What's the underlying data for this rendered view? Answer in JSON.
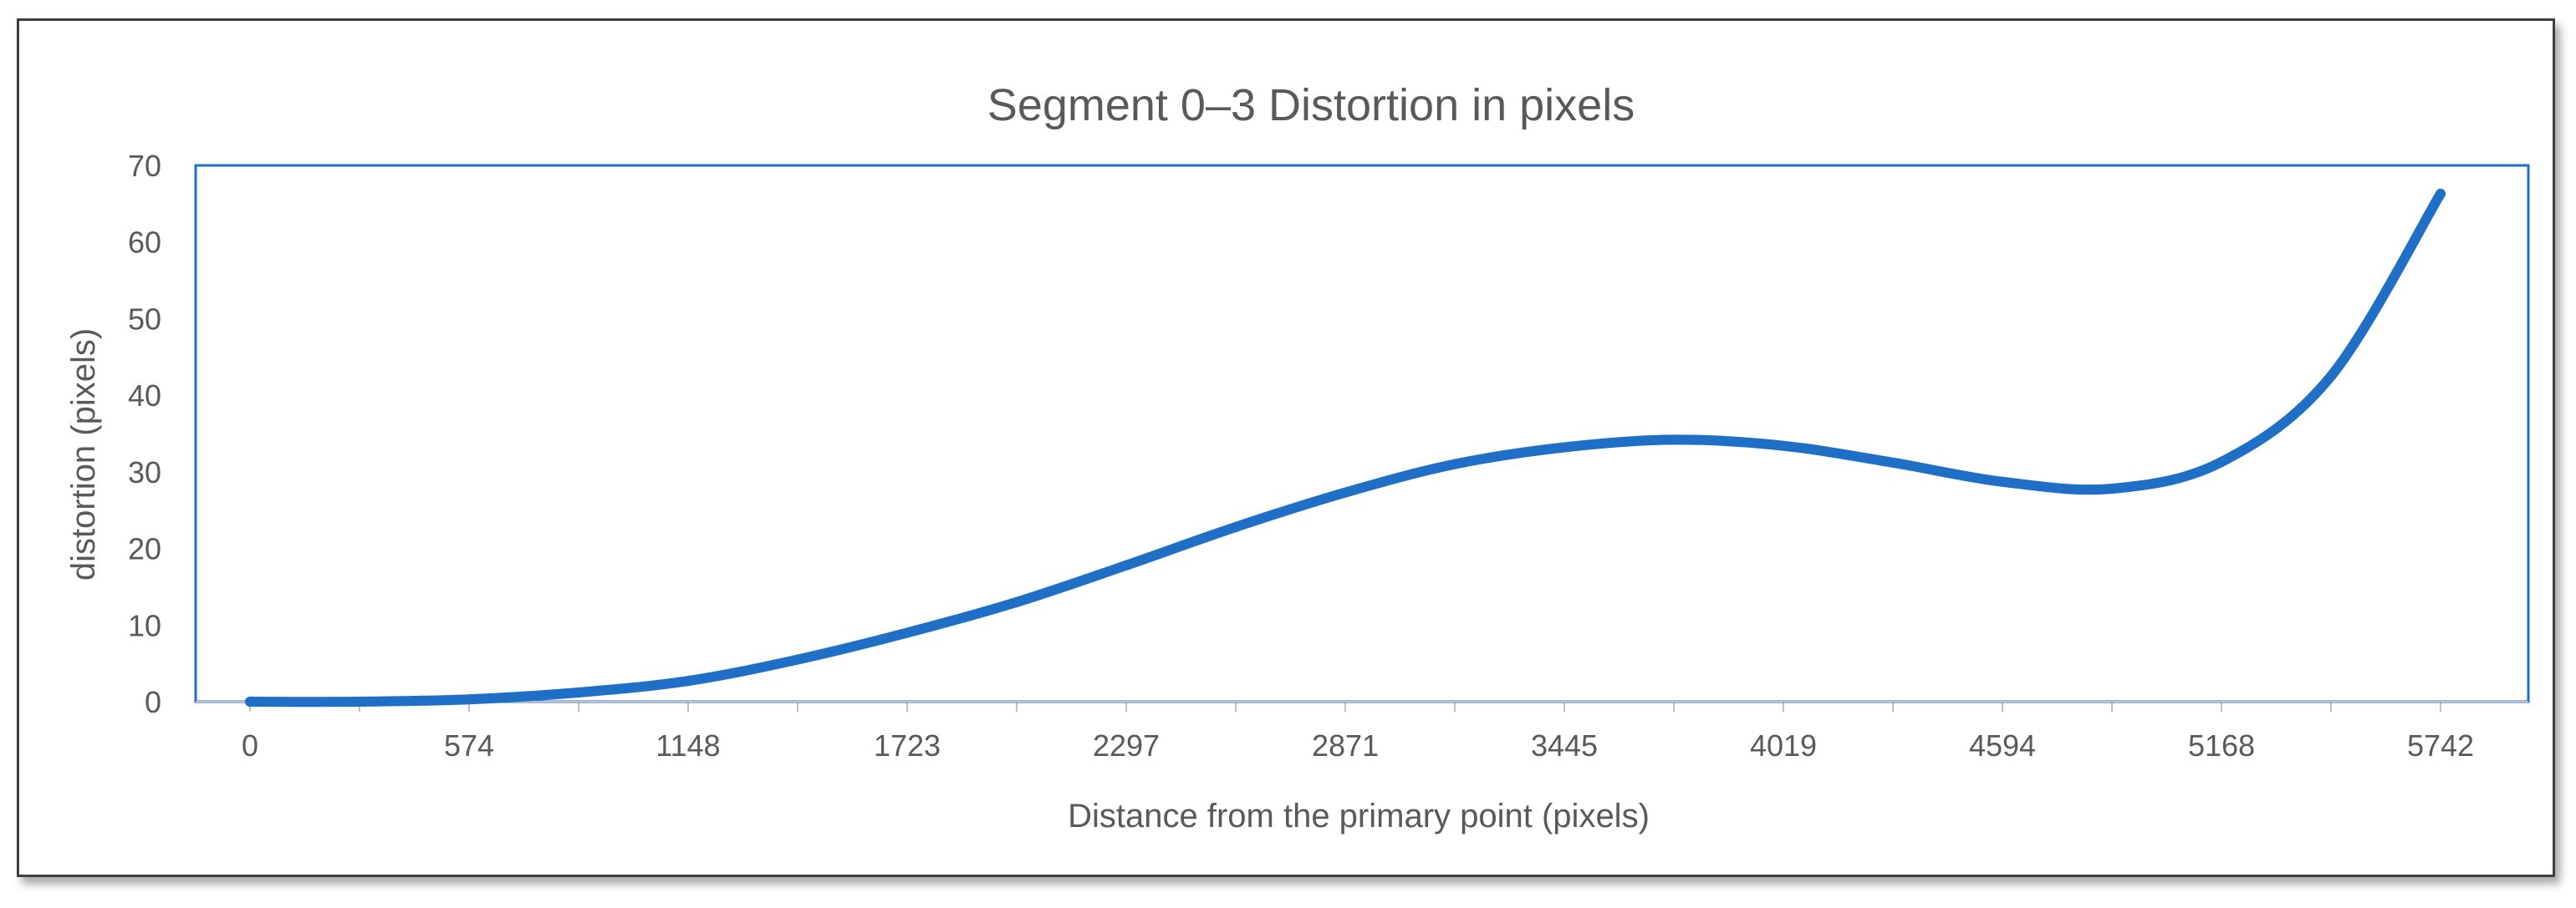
{
  "chart_data": {
    "type": "line",
    "title": "Segment 0–3 Distortion in pixels",
    "xlabel": "Distance from the primary point (pixels)",
    "ylabel": "distortion (pixels)",
    "x_tick_labels": [
      "0",
      "574",
      "1148",
      "1723",
      "2297",
      "2871",
      "3445",
      "4019",
      "4594",
      "5168",
      "5742"
    ],
    "y_tick_labels": [
      "0",
      "10",
      "20",
      "30",
      "40",
      "50",
      "60",
      "70"
    ],
    "ylim": [
      0,
      70
    ],
    "grid": false,
    "legend": "none",
    "series": [
      {
        "x": [
          0,
          287,
          574,
          861,
          1148,
          1436,
          1723,
          2010,
          2297,
          2584,
          2871,
          3158,
          3445,
          3732,
          4019,
          4307,
          4594,
          4881,
          5168,
          5455,
          5742
        ],
        "values": [
          0,
          0,
          0.3,
          1.2,
          2.7,
          5.5,
          9,
          13,
          17.8,
          22.8,
          27.3,
          31,
          33.2,
          34.2,
          33.4,
          31.2,
          28.7,
          27.8,
          31.3,
          42.5,
          66.3
        ]
      }
    ],
    "colors": {
      "line": "#1f6fc6",
      "plot_border": "#1f6fc6",
      "text": "#595959",
      "axis": "#bfbfbf"
    }
  }
}
